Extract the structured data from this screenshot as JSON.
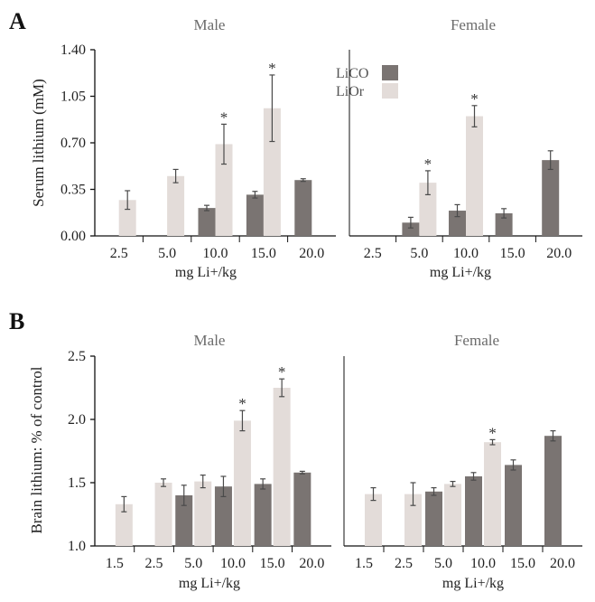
{
  "colors": {
    "LiCO": "#7a7472",
    "LiOr": "#e3dcd9",
    "axis": "#111111",
    "title": "#6b6b6b"
  },
  "chart_data": [
    {
      "panel_label": "A",
      "type": "bar",
      "ylabel": "Serum lithium (mM)",
      "ylim": [
        0,
        1.4
      ],
      "yticks": [
        "0.00",
        "0.35",
        "0.70",
        "1.05",
        "1.40"
      ],
      "legend": [
        {
          "name": "LiCO",
          "color": "#7a7472"
        },
        {
          "name": "LiOr",
          "color": "#e3dcd9"
        }
      ],
      "legend_position": "top-center",
      "subplots": [
        {
          "title": "Male",
          "xlabel": "mg Li+/kg",
          "categories": [
            "2.5",
            "5.0",
            "10.0",
            "15.0",
            "20.0"
          ],
          "series": [
            {
              "name": "LiCO",
              "values": [
                null,
                null,
                0.21,
                0.31,
                0.42
              ],
              "err": [
                null,
                null,
                0.02,
                0.025,
                0.01
              ]
            },
            {
              "name": "LiOr",
              "values": [
                0.27,
                0.45,
                0.69,
                0.96,
                null
              ],
              "err": [
                0.07,
                0.05,
                0.15,
                0.25,
                null
              ]
            }
          ],
          "significant": [
            {
              "series": "LiOr",
              "category": "10.0"
            },
            {
              "series": "LiOr",
              "category": "15.0"
            }
          ]
        },
        {
          "title": "Female",
          "xlabel": "mg Li+/kg",
          "categories": [
            "2.5",
            "5.0",
            "10.0",
            "15.0",
            "20.0"
          ],
          "series": [
            {
              "name": "LiCO",
              "values": [
                null,
                0.1,
                0.19,
                0.17,
                0.57
              ],
              "err": [
                null,
                0.04,
                0.045,
                0.035,
                0.07
              ]
            },
            {
              "name": "LiOr",
              "values": [
                null,
                0.4,
                0.9,
                null,
                null
              ],
              "err": [
                null,
                0.09,
                0.08,
                null,
                null
              ]
            }
          ],
          "significant": [
            {
              "series": "LiOr",
              "category": "5.0"
            },
            {
              "series": "LiOr",
              "category": "10.0"
            }
          ]
        }
      ]
    },
    {
      "panel_label": "B",
      "type": "bar",
      "ylabel": "Brain lithium: % of control",
      "ylim": [
        1.0,
        2.5
      ],
      "yticks": [
        "1.0",
        "1.5",
        "2.0",
        "2.5"
      ],
      "subplots": [
        {
          "title": "Male",
          "xlabel": "mg Li+/kg",
          "categories": [
            "1.5",
            "2.5",
            "5.0",
            "10.0",
            "15.0",
            "20.0"
          ],
          "series": [
            {
              "name": "LiCO",
              "values": [
                null,
                null,
                1.4,
                1.47,
                1.49,
                1.58
              ],
              "err": [
                null,
                null,
                0.08,
                0.08,
                0.04,
                0.01
              ]
            },
            {
              "name": "LiOr",
              "values": [
                1.33,
                1.5,
                1.51,
                1.99,
                2.25,
                null
              ],
              "err": [
                0.06,
                0.03,
                0.05,
                0.08,
                0.07,
                null
              ]
            }
          ],
          "significant": [
            {
              "series": "LiOr",
              "category": "10.0"
            },
            {
              "series": "LiOr",
              "category": "15.0"
            }
          ]
        },
        {
          "title": "Female",
          "xlabel": "mg Li+/kg",
          "categories": [
            "1.5",
            "2.5",
            "5.0",
            "10.0",
            "15.0",
            "20.0"
          ],
          "series": [
            {
              "name": "LiCO",
              "values": [
                null,
                null,
                1.43,
                1.55,
                1.64,
                1.87
              ],
              "err": [
                null,
                null,
                0.03,
                0.03,
                0.04,
                0.04
              ]
            },
            {
              "name": "LiOr",
              "values": [
                1.41,
                1.41,
                1.49,
                1.82,
                null,
                null
              ],
              "err": [
                0.05,
                0.09,
                0.02,
                0.02,
                null,
                null
              ]
            }
          ],
          "significant": [
            {
              "series": "LiOr",
              "category": "10.0"
            }
          ]
        }
      ]
    }
  ]
}
